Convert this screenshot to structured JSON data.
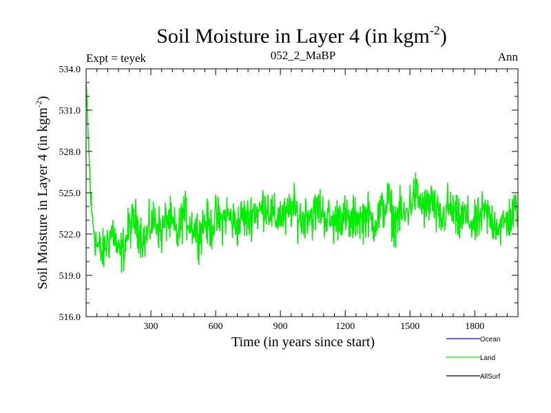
{
  "chart_data": {
    "type": "line",
    "title": "Soil Moisture in Layer 4 (in kgm",
    "title_sup": "-2",
    "title_close": ")",
    "subtitle_left": "Expt = teyek",
    "subtitle_center": "052_2_MaBP",
    "subtitle_right": "Ann",
    "xlabel": "Time (in years since start)",
    "ylabel": "Soil Moisture in Layer 4 (in kgm",
    "ylabel_sup": "-2",
    "ylabel_close": ")",
    "xlim": [
      0,
      2000
    ],
    "ylim": [
      516.0,
      534.0
    ],
    "x_ticks": [
      300,
      600,
      900,
      1200,
      1500,
      1800
    ],
    "x_tick_labels": [
      "300",
      "600",
      "900",
      "1200",
      "1500",
      "1800"
    ],
    "y_ticks": [
      516,
      519,
      522,
      525,
      528,
      531,
      534
    ],
    "y_tick_labels": [
      "516.0",
      "519.0",
      "522.0",
      "525.0",
      "528.0",
      "531.0",
      "534.0"
    ],
    "legend": {
      "position": "bottom-right",
      "entries": [
        {
          "name": "Ocean",
          "color": "#0000ff"
        },
        {
          "name": "Land",
          "color": "#00ee00"
        },
        {
          "name": "AllSurf",
          "color": "#000000"
        }
      ]
    },
    "series": [
      {
        "name": "Land",
        "color": "#00ee00",
        "x": [
          0,
          25,
          50,
          75,
          100,
          125,
          150,
          175,
          200,
          225,
          250,
          275,
          300,
          325,
          350,
          375,
          400,
          425,
          450,
          475,
          500,
          525,
          550,
          575,
          600,
          625,
          650,
          675,
          700,
          725,
          750,
          775,
          800,
          825,
          850,
          875,
          900,
          925,
          950,
          975,
          1000,
          1025,
          1050,
          1075,
          1100,
          1125,
          1150,
          1175,
          1200,
          1225,
          1250,
          1275,
          1300,
          1325,
          1350,
          1375,
          1400,
          1425,
          1450,
          1475,
          1500,
          1525,
          1550,
          1575,
          1600,
          1625,
          1650,
          1675,
          1700,
          1725,
          1750,
          1775,
          1800,
          1825,
          1850,
          1875,
          1900,
          1925,
          1950,
          1975,
          2000
        ],
        "values": [
          532.8,
          523.5,
          521.2,
          520.5,
          521.5,
          522.3,
          520.4,
          521.0,
          522.5,
          523.0,
          522.2,
          521.5,
          522.8,
          523.0,
          522.0,
          523.2,
          522.6,
          521.8,
          523.5,
          523.0,
          522.5,
          522.0,
          523.0,
          522.3,
          523.2,
          522.8,
          523.5,
          523.0,
          522.6,
          523.3,
          523.0,
          523.8,
          523.5,
          524.2,
          523.8,
          523.0,
          523.5,
          523.0,
          524.0,
          523.5,
          523.0,
          523.7,
          523.2,
          524.0,
          523.5,
          523.0,
          522.8,
          523.5,
          523.2,
          522.6,
          523.4,
          523.0,
          523.5,
          522.8,
          523.2,
          523.8,
          524.5,
          522.8,
          523.5,
          523.2,
          524.2,
          525.0,
          524.2,
          523.8,
          524.5,
          523.2,
          523.0,
          524.0,
          523.5,
          522.8,
          523.3,
          523.0,
          522.5,
          523.2,
          523.5,
          523.0,
          522.8,
          522.5,
          523.0,
          523.4,
          524.0
        ]
      }
    ]
  }
}
